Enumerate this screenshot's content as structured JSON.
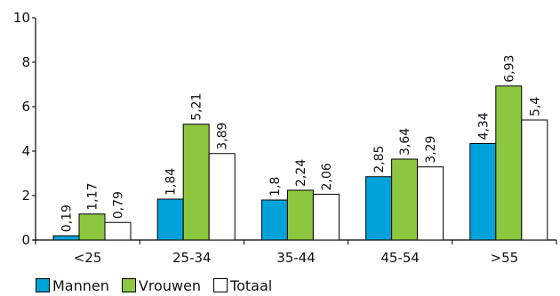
{
  "chart_data": {
    "type": "bar",
    "categories": [
      "<25",
      "25-34",
      "35-44",
      "45-54",
      ">55"
    ],
    "series": [
      {
        "name": "Mannen",
        "values": [
          0.19,
          1.84,
          1.8,
          2.85,
          4.34
        ],
        "labels": [
          "0,19",
          "1,84",
          "1,8",
          "2,85",
          "4,34"
        ],
        "color": "#00a3d9"
      },
      {
        "name": "Vrouwen",
        "values": [
          1.17,
          5.21,
          2.24,
          3.64,
          6.93
        ],
        "labels": [
          "1,17",
          "5,21",
          "2,24",
          "3,64",
          "6,93"
        ],
        "color": "#8dc63f"
      },
      {
        "name": "Totaal",
        "values": [
          0.79,
          3.89,
          2.06,
          3.29,
          5.4
        ],
        "labels": [
          "0,79",
          "3,89",
          "2,06",
          "3,29",
          "5,4"
        ],
        "color": "#ffffff"
      }
    ],
    "ylim": [
      0,
      10
    ],
    "yticks": [
      0,
      2,
      4,
      6,
      8,
      10
    ],
    "ytick_labels": [
      "0",
      "2",
      "4",
      "6",
      "8",
      "10"
    ],
    "grid": false,
    "legend_position": "bottom-left"
  }
}
